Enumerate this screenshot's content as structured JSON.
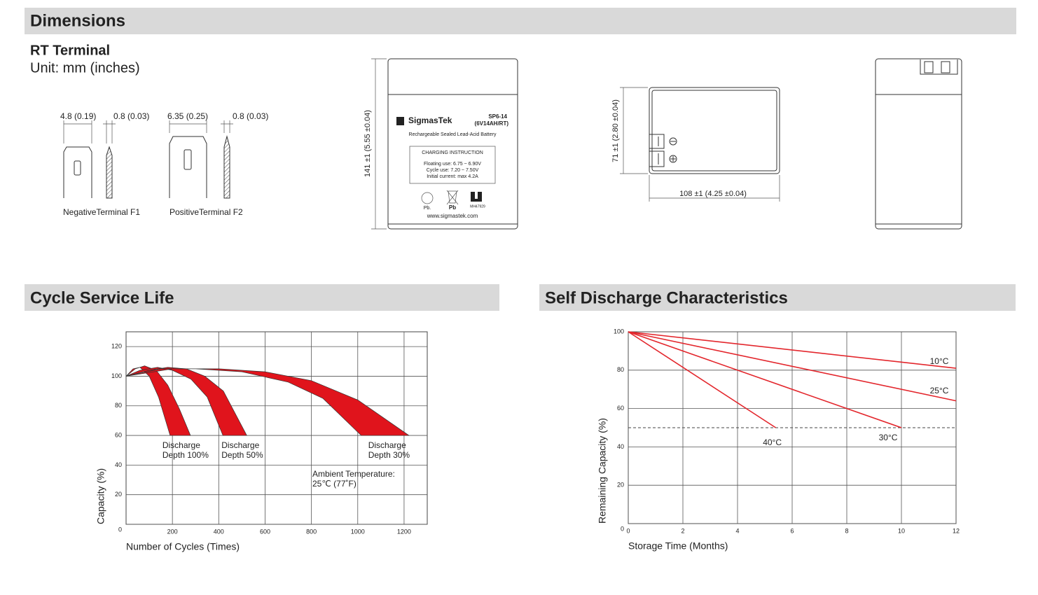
{
  "header": {
    "title": "Dimensions",
    "subtitle": "RT Terminal",
    "unit": "Unit: mm (inches)"
  },
  "terminals": [
    {
      "dims": [
        "4.8 (0.19)",
        "0.8 (0.03)"
      ],
      "label": "NegativeTerminal F1"
    },
    {
      "dims": [
        "6.35 (0.25)",
        "0.8 (0.03)"
      ],
      "label": "PositiveTerminal F2"
    }
  ],
  "battery_label": {
    "brand": "SigmasTek",
    "model": "SP6-14",
    "spec": "(6V14AH/RT)",
    "description": "Rechargeable Sealed Lead-Acid Battery",
    "instruction_title": "CHARGING INSTRUCTION",
    "instructions": [
      "Floating use: 6.75 ~ 6.90V",
      "Cycle use: 7.20 ~ 7.50V",
      "Initial current: max 4.2A"
    ],
    "marks": [
      "Pb.",
      "Pb",
      "MH47929"
    ],
    "website": "www.sigmastek.com"
  },
  "dimensions": {
    "height": "141 ±1 (5.55 ±0.04)",
    "width": "71 ±1 (2.80 ±0.04)",
    "length": "108 ±1 (4.25 ±0.04)"
  },
  "chart_data": [
    {
      "type": "band",
      "title": "Cycle Service Life",
      "x_label": "Number of Cycles (Times)",
      "y_label": "Capacity (%)",
      "xlim": [
        0,
        1300
      ],
      "ylim": [
        0,
        130
      ],
      "xticks": [
        200,
        400,
        600,
        800,
        1000,
        1200
      ],
      "yticks": [
        0,
        20,
        40,
        60,
        80,
        100,
        120
      ],
      "grid": true,
      "series": [
        {
          "color": "#e0141c",
          "label": [
            "Discharge",
            "Depth 100%"
          ],
          "edges": [
            {
              "x": [
                0,
                30,
                60,
                100,
                140,
                190
              ],
              "values": [
                100,
                105,
                106,
                100,
                86,
                60
              ]
            },
            {
              "x": [
                0,
                40,
                80,
                130,
                180,
                230,
                278
              ],
              "values": [
                100,
                105,
                107,
                104,
                94,
                78,
                60
              ]
            }
          ]
        },
        {
          "color": "#e0141c",
          "label": [
            "Discharge",
            "Depth 50%"
          ],
          "edges": [
            {
              "x": [
                0,
                60,
                136,
                200,
                280,
                350,
                418
              ],
              "values": [
                100,
                104,
                106,
                104,
                98,
                86,
                60
              ]
            },
            {
              "x": [
                0,
                100,
                180,
                260,
                340,
                420,
                521
              ],
              "values": [
                100,
                104,
                106,
                105,
                100,
                90,
                60
              ]
            }
          ]
        },
        {
          "color": "#e0141c",
          "label": [
            "Discharge",
            "Depth 30%"
          ],
          "edges": [
            {
              "x": [
                0,
                150,
                300,
                500,
                700,
                850,
                1015
              ],
              "values": [
                100,
                105,
                105,
                103,
                96,
                85,
                60
              ]
            },
            {
              "x": [
                0,
                200,
                400,
                600,
                800,
                1000,
                1221
              ],
              "values": [
                100,
                105,
                105,
                103,
                97,
                84,
                60
              ]
            }
          ]
        }
      ],
      "annotations": [
        "Ambient Temperature:",
        "25℃ (77˚F)"
      ]
    },
    {
      "type": "line",
      "title": "Self Discharge Characteristics",
      "x_label": "Storage Time (Months)",
      "y_label": "Remaining Capacity (%)",
      "xlim": [
        0,
        12
      ],
      "ylim": [
        0,
        100
      ],
      "xticks": [
        0,
        2,
        4,
        6,
        8,
        10,
        12
      ],
      "yticks": [
        0,
        20,
        40,
        60,
        80,
        100
      ],
      "grid": true,
      "reference_line": 50,
      "series": [
        {
          "name": "10°C",
          "color": "#e3262c",
          "x": [
            0,
            12
          ],
          "values": [
            100,
            81
          ]
        },
        {
          "name": "25°C",
          "color": "#e3262c",
          "x": [
            0,
            12
          ],
          "values": [
            100,
            64
          ]
        },
        {
          "name": "30°C",
          "color": "#e3262c",
          "x": [
            0,
            10
          ],
          "values": [
            100,
            50
          ]
        },
        {
          "name": "40°C",
          "color": "#e3262c",
          "x": [
            0,
            5.4
          ],
          "values": [
            100,
            50
          ]
        }
      ]
    }
  ]
}
